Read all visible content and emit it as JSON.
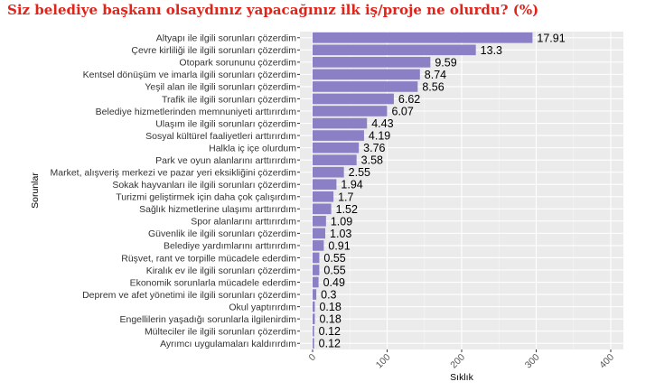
{
  "chart_data": {
    "type": "bar",
    "orientation": "horizontal",
    "title": "Siz belediye başkanı olsaydınız yapacağınız ilk iş/proje ne olurdu? (%)",
    "xlabel": "Sıklık",
    "ylabel": "Sorunlar",
    "xlim": [
      0,
      400
    ],
    "xticks": [
      "0",
      "100",
      "200",
      "300",
      "400"
    ],
    "grid": true,
    "bar_color": "#8b80c6",
    "panel_color": "#ebebeb",
    "title_color": "#e2231a",
    "categories": [
      "Altyapı ile ilgili sorunları çözerdim",
      "Çevre kirliliği ile ilgili sorunları çözerdim",
      "Otopark sorununu çözerdim",
      "Kentsel dönüşüm ve imarla ilgili sorunları çözerdim",
      "Yeşil alan ile ilgili sorunları çözerdim",
      "Trafik ile ilgili sorunları çözerdim",
      "Belediye hizmetlerinden memnuniyeti arttırırdım",
      "Ulaşım ile ilgili sorunları çözerdim",
      "Sosyal kültürel faaliyetleri arttırırdım",
      "Halkla iç içe olurdum",
      "Park ve oyun alanlarını arttırırdım",
      "Market, alışveriş merkezi ve pazar yeri eksikliğini çözerdim",
      "Sokak hayvanları ile ilgili sorunları çözerdim",
      "Turizmi geliştirmek için daha çok çalışırdım",
      "Sağlık hizmetlerine ulaşımı arttırırdım",
      "Spor alanlarını arttırırdım",
      "Güvenlik ile ilgili sorunları çözerdim",
      "Belediye yardımlarını arttırırdım",
      "Rüşvet, rant ve torpille mücadele ederdim",
      "Kiralık ev ile ilgili sorunları çözerdim",
      "Ekonomik sorunlarla mücadele ederdim",
      "Deprem ve afet yönetimi ile ilgili sorunları çözerdim",
      "Okul yaptırırdım",
      "Engellilerin yaşadığı sorunlarla ilgilenirdim",
      "Mülteciler ile ilgili sorunları çözerdim",
      "Ayrımcı uygulamaları kaldırırdım"
    ],
    "frequencies": [
      295,
      219,
      158,
      144,
      141,
      109,
      100,
      73,
      69,
      62,
      59,
      42,
      32,
      28,
      25,
      18,
      17,
      15,
      9,
      9,
      8,
      5,
      3,
      3,
      2,
      2
    ],
    "labels": [
      "17.91",
      "13.3",
      "9.59",
      "8.74",
      "8.56",
      "6.62",
      "6.07",
      "4.43",
      "4.19",
      "3.76",
      "3.58",
      "2.55",
      "1.94",
      "1.7",
      "1.52",
      "1.09",
      "1.03",
      "0.91",
      "0.55",
      "0.55",
      "0.49",
      "0.3",
      "0.18",
      "0.18",
      "0.12",
      "0.12"
    ]
  }
}
